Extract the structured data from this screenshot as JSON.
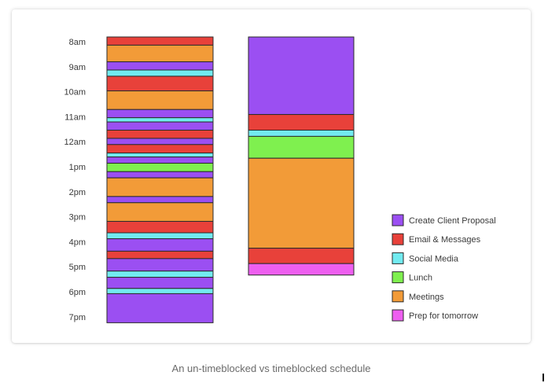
{
  "chart_data": {
    "type": "bar",
    "title": "",
    "caption": "An un-timeblocked vs timeblocked schedule",
    "time_axis": {
      "labels": [
        "8am",
        "9am",
        "10am",
        "11am",
        "12am",
        "1pm",
        "2pm",
        "3pm",
        "4pm",
        "5pm",
        "6pm",
        "7pm"
      ],
      "range_hours": [
        8,
        19.5
      ]
    },
    "categories": [
      {
        "key": "proposal",
        "name": "Create Client Proposal",
        "color": "#9b4ff2"
      },
      {
        "key": "email",
        "name": "Email & Messages",
        "color": "#e8413a"
      },
      {
        "key": "social",
        "name": "Social Media",
        "color": "#72ebf0"
      },
      {
        "key": "lunch",
        "name": "Lunch",
        "color": "#7ff04f"
      },
      {
        "key": "meetings",
        "name": "Meetings",
        "color": "#f29b38"
      },
      {
        "key": "prep",
        "name": "Prep for tomorrow",
        "color": "#ee5ff0"
      }
    ],
    "series": [
      {
        "segments": [
          {
            "category": "email",
            "start": 8.0,
            "end": 8.33
          },
          {
            "category": "meetings",
            "start": 8.33,
            "end": 9.0
          },
          {
            "category": "proposal",
            "start": 9.0,
            "end": 9.33
          },
          {
            "category": "social",
            "start": 9.33,
            "end": 9.58
          },
          {
            "category": "email",
            "start": 9.58,
            "end": 10.17
          },
          {
            "category": "meetings",
            "start": 10.17,
            "end": 10.92
          },
          {
            "category": "proposal",
            "start": 10.92,
            "end": 11.25
          },
          {
            "category": "social",
            "start": 11.25,
            "end": 11.42
          },
          {
            "category": "proposal",
            "start": 11.42,
            "end": 11.75
          },
          {
            "category": "email",
            "start": 11.75,
            "end": 12.08
          },
          {
            "category": "proposal",
            "start": 12.08,
            "end": 12.33
          },
          {
            "category": "email",
            "start": 12.33,
            "end": 12.67
          },
          {
            "category": "social",
            "start": 12.67,
            "end": 12.83
          },
          {
            "category": "proposal",
            "start": 12.83,
            "end": 13.08
          },
          {
            "category": "lunch",
            "start": 13.08,
            "end": 13.42
          },
          {
            "category": "proposal",
            "start": 13.42,
            "end": 13.67
          },
          {
            "category": "meetings",
            "start": 13.67,
            "end": 14.42
          },
          {
            "category": "proposal",
            "start": 14.42,
            "end": 14.67
          },
          {
            "category": "meetings",
            "start": 14.67,
            "end": 15.42
          },
          {
            "category": "email",
            "start": 15.42,
            "end": 15.88
          },
          {
            "category": "social",
            "start": 15.88,
            "end": 16.12
          },
          {
            "category": "proposal",
            "start": 16.12,
            "end": 16.62
          },
          {
            "category": "email",
            "start": 16.62,
            "end": 16.92
          },
          {
            "category": "proposal",
            "start": 16.92,
            "end": 17.42
          },
          {
            "category": "social",
            "start": 17.42,
            "end": 17.67
          },
          {
            "category": "proposal",
            "start": 17.67,
            "end": 18.12
          },
          {
            "category": "social",
            "start": 18.12,
            "end": 18.33
          },
          {
            "category": "proposal",
            "start": 18.33,
            "end": 19.5
          }
        ]
      },
      {
        "segments": [
          {
            "category": "proposal",
            "start": 8.0,
            "end": 11.12
          },
          {
            "category": "email",
            "start": 11.12,
            "end": 11.75
          },
          {
            "category": "social",
            "start": 11.75,
            "end": 12.0
          },
          {
            "category": "lunch",
            "start": 12.0,
            "end": 12.88
          },
          {
            "category": "meetings",
            "start": 12.88,
            "end": 16.5
          },
          {
            "category": "email",
            "start": 16.5,
            "end": 17.12
          },
          {
            "category": "prep",
            "start": 17.12,
            "end": 17.58
          }
        ]
      }
    ],
    "legend_position": "right"
  }
}
